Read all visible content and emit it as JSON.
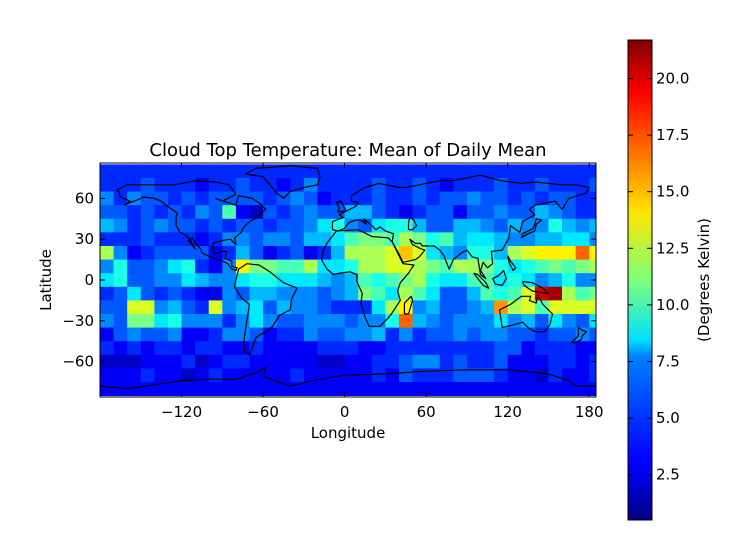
{
  "chart_data": {
    "type": "heatmap",
    "title": "Cloud Top Temperature: Mean of Daily Mean",
    "xlabel": "Longitude",
    "ylabel": "Latitude",
    "xlim": [
      -180,
      185
    ],
    "ylim": [
      -86,
      86
    ],
    "x_ticks": [
      -120,
      -60,
      0,
      60,
      120,
      180
    ],
    "y_ticks": [
      60,
      30,
      0,
      -30,
      -60
    ],
    "grid": false,
    "cell_size_deg": [
      10,
      10
    ],
    "lon_start": -180,
    "lat_rows_north_to_south": [
      80,
      70,
      60,
      50,
      40,
      30,
      20,
      10,
      0,
      -10,
      -20,
      -30,
      -40,
      -50,
      -60,
      -70,
      -80
    ],
    "values": [
      [
        4,
        4,
        4,
        4,
        4,
        4,
        4,
        4,
        4,
        4,
        4,
        4,
        4,
        4,
        4,
        4,
        4,
        4,
        4,
        4,
        4,
        4,
        4,
        4,
        4,
        4,
        4,
        4,
        4,
        4,
        4,
        4,
        4,
        4,
        4,
        4,
        4
      ],
      [
        4,
        4,
        4,
        5,
        4,
        4,
        4,
        3,
        4,
        4,
        5,
        4,
        4,
        3,
        4,
        6,
        4,
        4,
        4,
        4,
        5,
        4,
        4,
        5,
        4,
        3,
        4,
        4,
        4,
        5,
        4,
        4,
        5,
        4,
        4,
        4,
        5
      ],
      [
        6,
        4,
        6,
        5,
        5,
        4,
        5,
        4,
        5,
        5,
        5,
        5,
        4,
        5,
        6,
        5,
        3,
        4,
        4,
        4,
        5,
        4,
        4,
        5,
        4,
        5,
        5,
        6,
        5,
        5,
        4,
        5,
        4,
        5,
        5,
        4,
        4
      ],
      [
        5,
        5,
        4,
        5,
        4,
        5,
        4,
        6,
        5,
        10,
        3,
        2,
        5,
        4,
        5,
        6,
        5,
        5,
        7,
        7,
        5,
        4,
        3,
        4,
        5,
        5,
        3,
        5,
        5,
        6,
        5,
        5,
        7,
        6,
        5,
        4,
        4
      ],
      [
        7,
        6,
        4,
        5,
        6,
        5,
        5,
        4,
        5,
        4,
        5,
        5,
        4,
        5,
        5,
        6,
        8,
        9,
        6,
        5,
        8,
        9,
        9,
        7,
        5,
        5,
        7,
        7,
        6,
        5,
        7,
        6,
        6,
        9,
        7,
        6,
        7
      ],
      [
        4,
        4,
        4,
        5,
        4,
        4,
        4,
        3,
        4,
        6,
        6,
        5,
        6,
        6,
        5,
        7,
        7,
        8,
        10,
        11,
        11,
        10,
        12,
        11,
        9,
        10,
        7,
        8,
        8,
        7,
        6,
        6,
        7,
        7,
        8,
        8,
        6
      ],
      [
        12,
        6,
        3,
        4,
        5,
        5,
        5,
        5,
        3,
        4,
        7,
        5,
        3,
        4,
        5,
        3,
        4,
        7,
        12,
        12,
        12,
        13,
        15,
        13,
        8,
        7,
        6,
        9,
        9,
        7,
        12,
        13,
        14,
        14,
        14,
        17,
        14
      ],
      [
        6,
        9,
        5,
        5,
        6,
        8,
        9,
        4,
        3,
        6,
        14,
        11,
        11,
        10,
        10,
        12,
        8,
        8,
        9,
        12,
        12,
        13,
        13,
        12,
        11,
        10,
        12,
        12,
        11,
        9,
        8,
        9,
        10,
        11,
        10,
        11,
        12
      ],
      [
        8,
        9,
        5,
        5,
        6,
        6,
        8,
        7,
        6,
        6,
        8,
        9,
        9,
        8,
        8,
        8,
        7,
        6,
        7,
        10,
        9,
        10,
        11,
        12,
        9,
        8,
        8,
        10,
        10,
        8,
        9,
        8,
        6,
        7,
        9,
        6,
        6
      ],
      [
        4,
        5,
        8,
        5,
        4,
        5,
        4,
        3,
        3,
        6,
        5,
        7,
        7,
        6,
        6,
        6,
        5,
        6,
        7,
        11,
        10,
        8,
        12,
        10,
        8,
        5,
        5,
        7,
        10,
        9,
        10,
        13,
        20,
        21,
        12,
        10,
        11
      ],
      [
        5,
        5,
        13,
        13,
        6,
        7,
        5,
        4,
        13,
        6,
        7,
        8,
        5,
        7,
        6,
        6,
        5,
        4,
        4,
        4,
        8,
        12,
        14,
        6,
        7,
        5,
        5,
        6,
        7,
        16,
        12,
        13,
        10,
        13,
        13,
        13,
        13
      ],
      [
        6,
        5,
        11,
        11,
        8,
        9,
        6,
        6,
        6,
        4,
        6,
        8,
        6,
        5,
        5,
        6,
        6,
        6,
        5,
        6,
        6,
        9,
        17,
        7,
        6,
        5,
        6,
        6,
        6,
        8,
        6,
        7,
        5,
        8,
        6,
        5,
        8
      ],
      [
        3,
        5,
        6,
        5,
        5,
        6,
        3,
        3,
        4,
        6,
        6,
        5,
        3,
        4,
        4,
        6,
        5,
        5,
        6,
        6,
        7,
        4,
        6,
        4,
        5,
        5,
        6,
        5,
        6,
        6,
        5,
        5,
        4,
        5,
        5,
        6,
        5
      ],
      [
        4,
        3,
        4,
        3,
        4,
        4,
        3,
        4,
        4,
        3,
        3,
        4,
        3,
        3,
        3,
        3,
        4,
        4,
        4,
        3,
        3,
        4,
        4,
        4,
        4,
        4,
        4,
        4,
        4,
        5,
        5,
        3,
        4,
        4,
        4,
        3,
        3
      ],
      [
        2,
        2,
        2,
        3,
        3,
        3,
        4,
        2,
        3,
        4,
        4,
        3,
        3,
        3,
        3,
        3,
        2,
        2,
        3,
        3,
        4,
        4,
        5,
        6,
        6,
        4,
        5,
        4,
        4,
        5,
        3,
        3,
        3,
        4,
        4,
        3,
        4
      ],
      [
        3,
        3,
        3,
        4,
        3,
        3,
        2,
        3,
        4,
        3,
        3,
        3,
        3,
        3,
        4,
        3,
        3,
        3,
        3,
        3,
        4,
        3,
        5,
        4,
        4,
        4,
        5,
        5,
        5,
        4,
        3,
        3,
        2,
        4,
        3,
        3,
        4
      ],
      [
        3,
        3,
        3,
        3,
        3,
        3,
        3,
        3,
        3,
        3,
        3,
        3,
        3,
        3,
        3,
        3,
        3,
        3,
        3,
        3,
        3,
        3,
        3,
        3,
        3,
        3,
        3,
        3,
        3,
        3,
        3,
        3,
        3,
        3,
        3,
        3,
        3
      ]
    ],
    "colorbar": {
      "label": "(Degrees Kelvin)",
      "colormap": "jet",
      "range": [
        0.5,
        21.7
      ],
      "ticks": [
        2.5,
        5.0,
        7.5,
        10.0,
        12.5,
        15.0,
        17.5,
        20.0
      ],
      "tick_labels": [
        "2.5",
        "5.0",
        "7.5",
        "10.0",
        "12.5",
        "15.0",
        "17.5",
        "20.0"
      ]
    }
  }
}
